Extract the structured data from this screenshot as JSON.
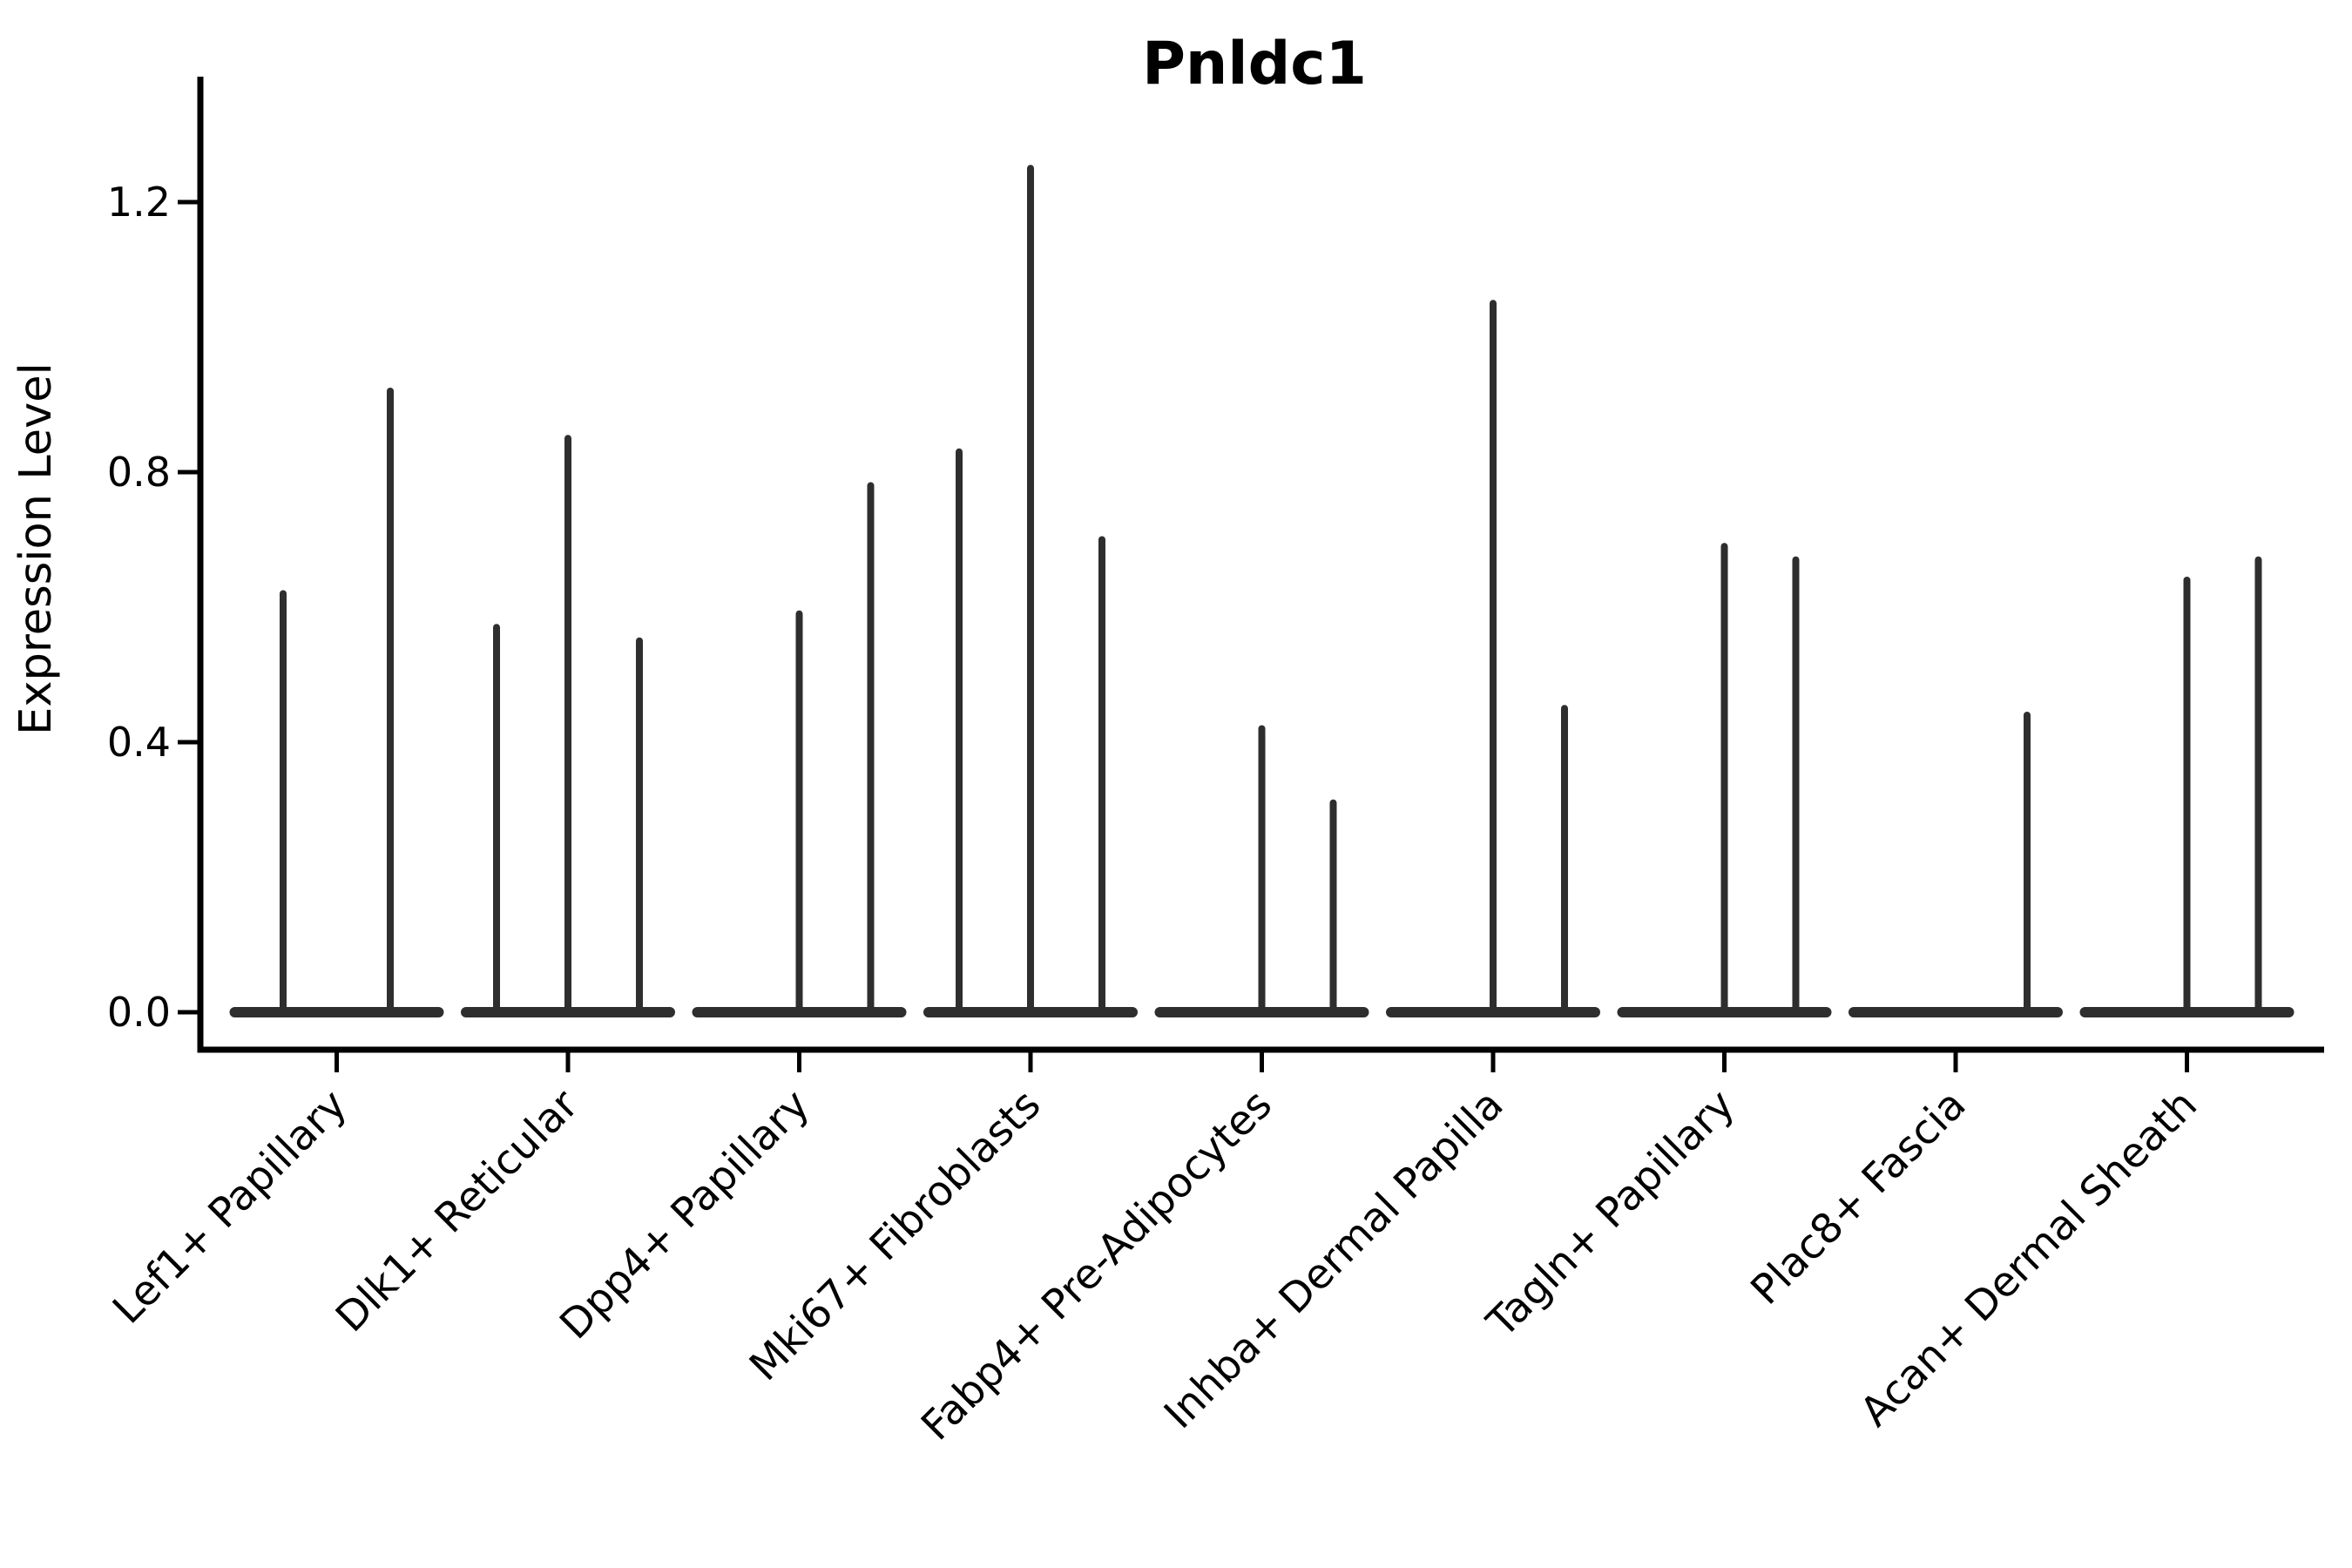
{
  "title": "Pnldc1",
  "y_axis": {
    "label": "Expression Level",
    "tick_labels": [
      "0.0",
      "0.4",
      "0.8",
      "1.2"
    ],
    "tick_values": [
      0.0,
      0.4,
      0.8,
      1.2
    ]
  },
  "x_axis": {
    "categories": [
      "Lef1+ Papillary",
      "Dlk1+ Reticular",
      "Dpp4+ Papillary",
      "Mki67+ Fibroblasts",
      "Fabp4+ Pre-Adipocytes",
      "Inhba+ Dermal Papilla",
      "Tagln+ Papillary",
      "Plac8+ Fascia",
      "Acan+ Dermal Sheath"
    ]
  },
  "chart_data": {
    "type": "violin",
    "title": "Pnldc1",
    "xlabel": "",
    "ylabel": "Expression Level",
    "ylim": [
      -0.05,
      1.38
    ],
    "yticks": [
      0.0,
      0.4,
      0.8,
      1.2
    ],
    "grid": false,
    "legend": "none",
    "description": "Needle-thin violins (sparse single-cell expression); each category shows a flat base at 0 with thin spikes reaching the listed max expression; max 0 means a fully flat violin.",
    "categories": [
      "Lef1+ Papillary",
      "Dlk1+ Reticular",
      "Dpp4+ Papillary",
      "Mki67+ Fibroblasts",
      "Fabp4+ Pre-Adipocytes",
      "Inhba+ Dermal Papilla",
      "Tagln+ Papillary",
      "Plac8+ Fascia",
      "Acan+ Dermal Sheath"
    ],
    "groups": [
      {
        "category": "Lef1+ Papillary",
        "violins": [
          {
            "pos": 0.25,
            "max": 0.62
          },
          {
            "pos": 0.75,
            "max": 0.92
          }
        ]
      },
      {
        "category": "Dlk1+ Reticular",
        "violins": [
          {
            "pos": 0.1667,
            "max": 0.57
          },
          {
            "pos": 0.5,
            "max": 0.85
          },
          {
            "pos": 0.8333,
            "max": 0.55
          }
        ]
      },
      {
        "category": "Dpp4+ Papillary",
        "violins": [
          {
            "pos": 0.1667,
            "max": 0.0
          },
          {
            "pos": 0.5,
            "max": 0.59
          },
          {
            "pos": 0.8333,
            "max": 0.78
          }
        ]
      },
      {
        "category": "Mki67+ Fibroblasts",
        "violins": [
          {
            "pos": 0.1667,
            "max": 0.83
          },
          {
            "pos": 0.5,
            "max": 1.25
          },
          {
            "pos": 0.8333,
            "max": 0.7
          }
        ]
      },
      {
        "category": "Fabp4+ Pre-Adipocytes",
        "violins": [
          {
            "pos": 0.1667,
            "max": 0.0
          },
          {
            "pos": 0.5,
            "max": 0.42
          },
          {
            "pos": 0.8333,
            "max": 0.31
          }
        ]
      },
      {
        "category": "Inhba+ Dermal Papilla",
        "violins": [
          {
            "pos": 0.1667,
            "max": 0.0
          },
          {
            "pos": 0.5,
            "max": 1.05
          },
          {
            "pos": 0.8333,
            "max": 0.45
          }
        ]
      },
      {
        "category": "Tagln+ Papillary",
        "violins": [
          {
            "pos": 0.1667,
            "max": 0.0
          },
          {
            "pos": 0.5,
            "max": 0.69
          },
          {
            "pos": 0.8333,
            "max": 0.67
          }
        ]
      },
      {
        "category": "Plac8+ Fascia",
        "violins": [
          {
            "pos": 0.1667,
            "max": 0.0
          },
          {
            "pos": 0.5,
            "max": 0.0
          },
          {
            "pos": 0.8333,
            "max": 0.44
          }
        ]
      },
      {
        "category": "Acan+ Dermal Sheath",
        "violins": [
          {
            "pos": 0.1667,
            "max": 0.0
          },
          {
            "pos": 0.5,
            "max": 0.64
          },
          {
            "pos": 0.8333,
            "max": 0.67
          }
        ]
      }
    ],
    "style": {
      "violin_color": "#2e2e2e",
      "axis_color": "#000000",
      "background": "#ffffff"
    }
  }
}
